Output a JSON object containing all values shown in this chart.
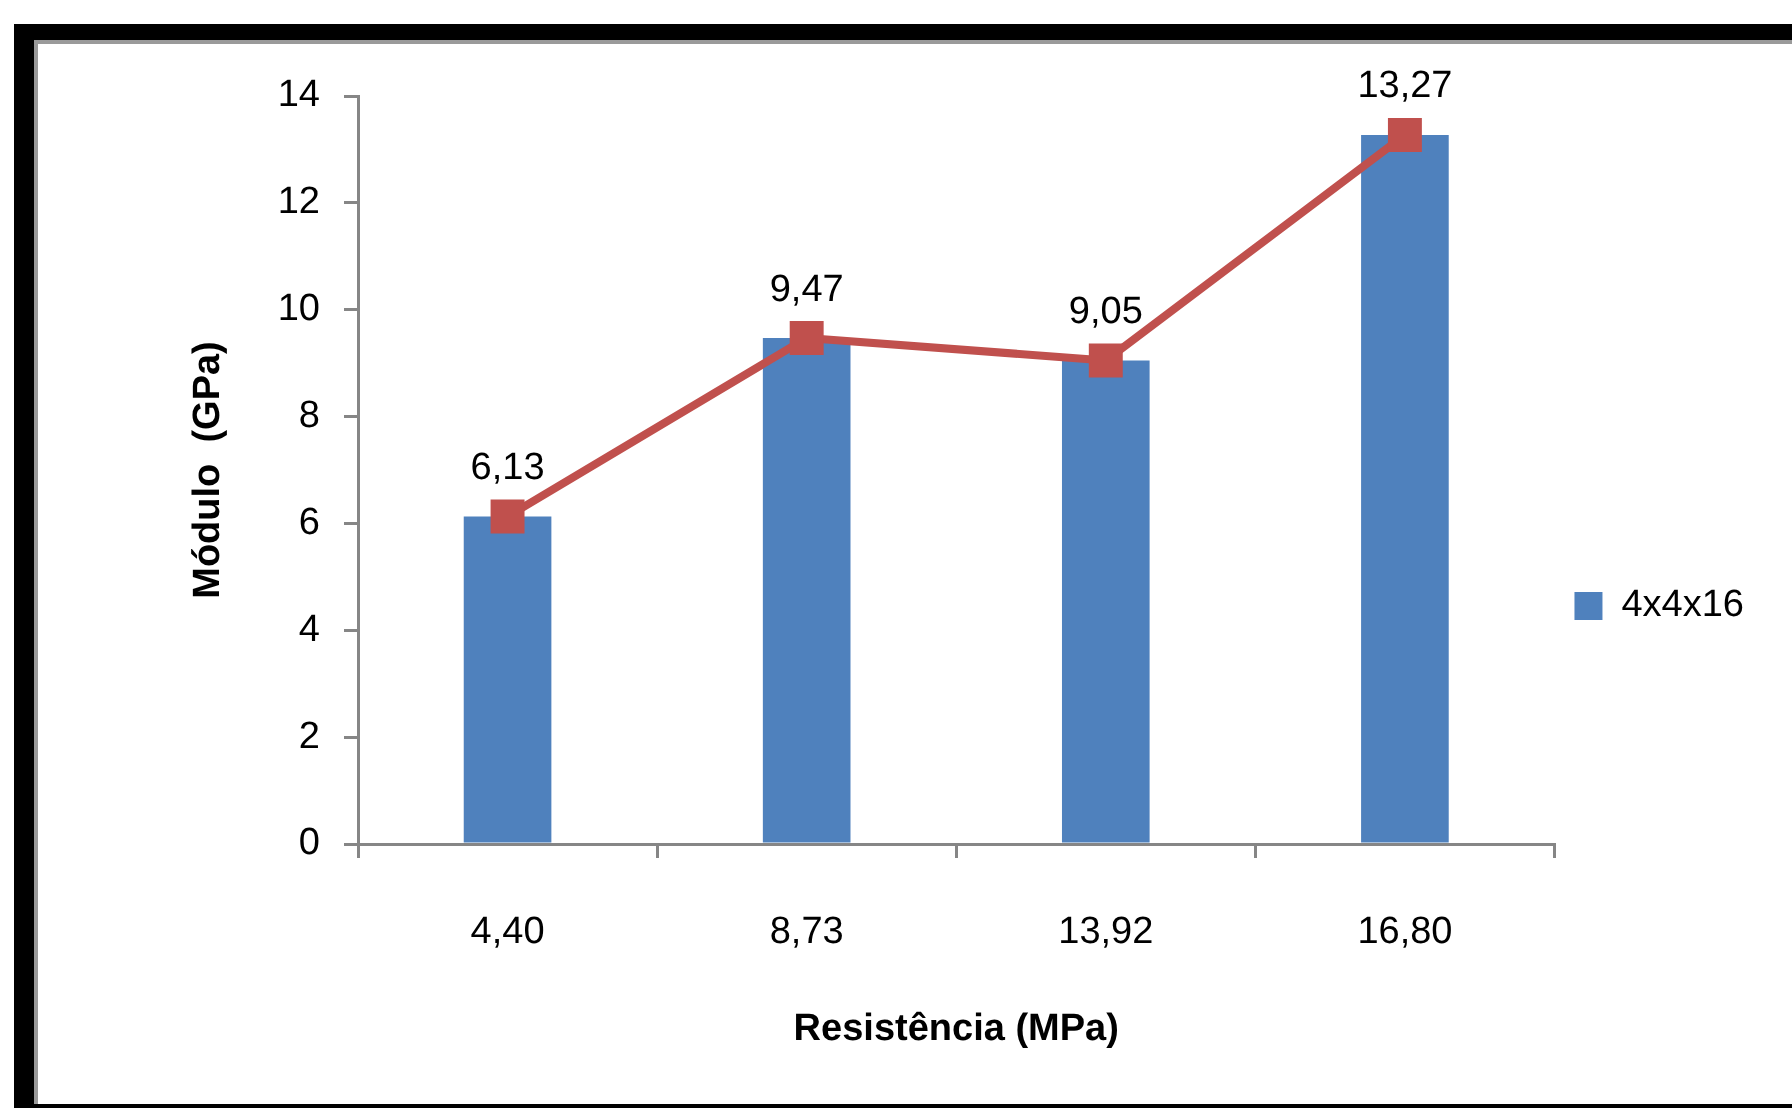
{
  "chart_data": {
    "type": "bar",
    "xlabel": "Resistência (MPa)",
    "ylabel": "Módulo  (GPa)",
    "categories": [
      "4,40",
      "8,73",
      "13,92",
      "16,80"
    ],
    "series": [
      {
        "name": "4x4x16",
        "color": "#4f81bd",
        "values": [
          6.13,
          9.47,
          9.05,
          13.27
        ],
        "value_labels": [
          "6,13",
          "9,47",
          "9,05",
          "13,27"
        ]
      },
      {
        "type": "line",
        "color": "#c0504d",
        "values": [
          6.13,
          9.47,
          9.05,
          13.27
        ],
        "marker": "square"
      }
    ],
    "ylim": [
      0,
      14
    ],
    "yticks": [
      0,
      2,
      4,
      6,
      8,
      10,
      12,
      14
    ],
    "grid": false,
    "legend": "right"
  }
}
